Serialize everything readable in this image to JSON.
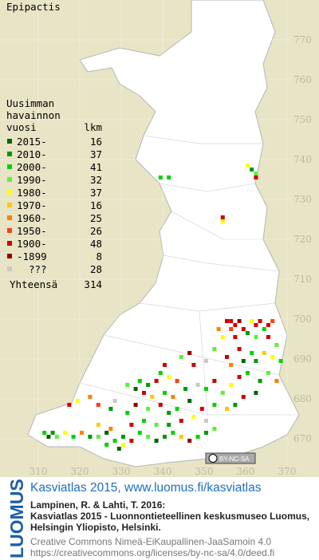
{
  "title": "Epipactis",
  "legend": {
    "heading": [
      "Uusimman",
      "havainnon",
      "vuosi"
    ],
    "count_heading": "lkm",
    "rows": [
      {
        "label": "2015-",
        "count": 16,
        "color": "#006400"
      },
      {
        "label": "2010-",
        "count": 37,
        "color": "#009a00"
      },
      {
        "label": "2000-",
        "count": 41,
        "color": "#00d200"
      },
      {
        "label": "1990-",
        "count": 32,
        "color": "#5cf03c"
      },
      {
        "label": "1980-",
        "count": 37,
        "color": "#ffff00"
      },
      {
        "label": "1970-",
        "count": 16,
        "color": "#ffc800"
      },
      {
        "label": "1960-",
        "count": 25,
        "color": "#ff8000"
      },
      {
        "label": "1950-",
        "count": 26,
        "color": "#ff4010"
      },
      {
        "label": "1900-",
        "count": 48,
        "color": "#d20000"
      },
      {
        "label": "-1899",
        "count": 8,
        "color": "#960000"
      },
      {
        "label": "???",
        "count": 28,
        "color": "#c8c8c8"
      }
    ],
    "total_label": "Yhteensä",
    "total": 314
  },
  "map": {
    "xticks": [
      310,
      320,
      330,
      340,
      350,
      360,
      370
    ],
    "yticks": [
      670,
      680,
      690,
      700,
      710,
      720,
      730,
      740,
      750,
      760,
      770
    ],
    "squares": [
      [
        361,
        737,
        1
      ],
      [
        362,
        736,
        3
      ],
      [
        360,
        738,
        4
      ],
      [
        362,
        735,
        8
      ],
      [
        339,
        735,
        2
      ],
      [
        341,
        735,
        2
      ],
      [
        354,
        725,
        8
      ],
      [
        354,
        724,
        4
      ],
      [
        355,
        699,
        8
      ],
      [
        356,
        699,
        8
      ],
      [
        357,
        698,
        8
      ],
      [
        358,
        699,
        9
      ],
      [
        353,
        697,
        6
      ],
      [
        356,
        697,
        7
      ],
      [
        359,
        697,
        8
      ],
      [
        361,
        699,
        4
      ],
      [
        362,
        698,
        8
      ],
      [
        363,
        699,
        8
      ],
      [
        364,
        697,
        2
      ],
      [
        365,
        698,
        8
      ],
      [
        366,
        699,
        7
      ],
      [
        360,
        696,
        1
      ],
      [
        354,
        695,
        4
      ],
      [
        357,
        695,
        8
      ],
      [
        362,
        695,
        3
      ],
      [
        365,
        695,
        8
      ],
      [
        367,
        693,
        3
      ],
      [
        358,
        692,
        8
      ],
      [
        361,
        691,
        2
      ],
      [
        364,
        691,
        5
      ],
      [
        366,
        690,
        4
      ],
      [
        368,
        689,
        2
      ],
      [
        359,
        689,
        0
      ],
      [
        362,
        689,
        1
      ],
      [
        355,
        690,
        8
      ],
      [
        356,
        688,
        6
      ],
      [
        352,
        692,
        3
      ],
      [
        350,
        689,
        10
      ],
      [
        347,
        688,
        8
      ],
      [
        346,
        691,
        9
      ],
      [
        344,
        690,
        3
      ],
      [
        340,
        688,
        8
      ],
      [
        339,
        686,
        2
      ],
      [
        341,
        685,
        4
      ],
      [
        343,
        684,
        7
      ],
      [
        338,
        684,
        8
      ],
      [
        336,
        683,
        1
      ],
      [
        334,
        684,
        2
      ],
      [
        333,
        682,
        0
      ],
      [
        331,
        683,
        3
      ],
      [
        335,
        681,
        8
      ],
      [
        337,
        680,
        5
      ],
      [
        340,
        681,
        2
      ],
      [
        342,
        680,
        6
      ],
      [
        345,
        682,
        1
      ],
      [
        348,
        683,
        10
      ],
      [
        350,
        682,
        2
      ],
      [
        352,
        684,
        8
      ],
      [
        354,
        681,
        3
      ],
      [
        356,
        683,
        4
      ],
      [
        358,
        685,
        8
      ],
      [
        360,
        686,
        2
      ],
      [
        363,
        684,
        1
      ],
      [
        365,
        686,
        3
      ],
      [
        367,
        684,
        6
      ],
      [
        362,
        681,
        0
      ],
      [
        359,
        680,
        8
      ],
      [
        357,
        678,
        1
      ],
      [
        355,
        677,
        5
      ],
      [
        352,
        678,
        2
      ],
      [
        349,
        677,
        8
      ],
      [
        346,
        679,
        0
      ],
      [
        343,
        677,
        2
      ],
      [
        341,
        676,
        1
      ],
      [
        339,
        678,
        8
      ],
      [
        336,
        677,
        3
      ],
      [
        333,
        678,
        9
      ],
      [
        331,
        676,
        2
      ],
      [
        328,
        679,
        10
      ],
      [
        327,
        677,
        1
      ],
      [
        322,
        680,
        6
      ],
      [
        324,
        678,
        7
      ],
      [
        319,
        679,
        4
      ],
      [
        317,
        678,
        8
      ],
      [
        313,
        671,
        1
      ],
      [
        312,
        670,
        0
      ],
      [
        311,
        671,
        2
      ],
      [
        314,
        670,
        3
      ],
      [
        316,
        671,
        4
      ],
      [
        318,
        670,
        2
      ],
      [
        320,
        671,
        6
      ],
      [
        322,
        670,
        1
      ],
      [
        324,
        670,
        3
      ],
      [
        326,
        671,
        0
      ],
      [
        328,
        669,
        2
      ],
      [
        330,
        670,
        1
      ],
      [
        332,
        669,
        8
      ],
      [
        334,
        671,
        2
      ],
      [
        336,
        670,
        3
      ],
      [
        338,
        669,
        0
      ],
      [
        340,
        670,
        1
      ],
      [
        342,
        671,
        2
      ],
      [
        344,
        670,
        5
      ],
      [
        346,
        669,
        9
      ],
      [
        348,
        670,
        2
      ],
      [
        350,
        671,
        1
      ],
      [
        352,
        672,
        3
      ],
      [
        330,
        668,
        4
      ],
      [
        329,
        667,
        0
      ],
      [
        326,
        668,
        2
      ],
      [
        332,
        673,
        8
      ],
      [
        335,
        674,
        2
      ],
      [
        338,
        673,
        3
      ],
      [
        341,
        673,
        1
      ],
      [
        344,
        674,
        8
      ],
      [
        347,
        675,
        4
      ],
      [
        350,
        674,
        10
      ],
      [
        327,
        672,
        6
      ],
      [
        324,
        673,
        5
      ]
    ]
  },
  "badge": "BY-NC-SA",
  "footer": {
    "logo": "LUOMUS",
    "heading": "Kasviatlas 2015, www.luomus.fi/kasviatlas",
    "citation": [
      "Lampinen, R. & Lahti, T. 2016:",
      "Kasviatlas 2015 - Luonnontieteellinen keskusmuseo Luomus,",
      "Helsingin Yliopisto, Helsinki."
    ],
    "license": [
      "Creative Commons Nimeä-EiKaupallinen-JaaSamoin 4.0",
      "https://creativecommons.org/licenses/by-nc-sa/4.0/deed.fi"
    ]
  }
}
